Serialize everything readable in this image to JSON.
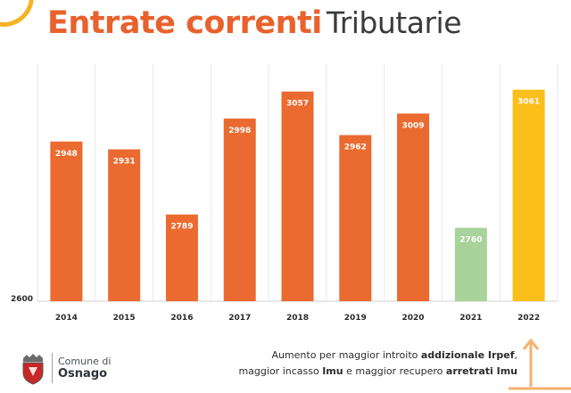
{
  "title": {
    "bold": "Entrate correnti",
    "light": "Tributarie"
  },
  "chart_data": {
    "type": "bar",
    "categories": [
      "2014",
      "2015",
      "2016",
      "2017",
      "2018",
      "2019",
      "2020",
      "2021",
      "2022"
    ],
    "values": [
      2948,
      2931,
      2789,
      2998,
      3057,
      2962,
      3009,
      2760,
      3061
    ],
    "data_labels": [
      "2948",
      "2931",
      "2789",
      "2998",
      "3057",
      "2962",
      "3009",
      "2760",
      "3061"
    ],
    "colors": [
      "#eb6a30",
      "#eb6a30",
      "#eb6a30",
      "#eb6a30",
      "#eb6a30",
      "#eb6a30",
      "#eb6a30",
      "#a8d39a",
      "#fbbf1c"
    ],
    "baseline_label": "2600",
    "ylim": [
      2600,
      3070
    ],
    "grid": true,
    "grid_color": "#e8e8e8",
    "xlabel": "",
    "ylabel": ""
  },
  "logo": {
    "line1": "Comune di",
    "line2": "Osnago"
  },
  "note": {
    "line1_prefix": "Aumento per maggior introito ",
    "line1_bold": "addizionale Irpef",
    "line1_suffix": ",",
    "line2_prefix": "maggior incasso ",
    "line2_bold1": "Imu",
    "line2_mid": " e maggior recupero ",
    "line2_bold2": "arretrati Imu"
  },
  "colors": {
    "accent": "#e9612c",
    "highlight": "#fbbf1c",
    "arc": "#f5b323"
  },
  "icons": {
    "crest": "crest-icon",
    "arrow": "arrow-icon"
  }
}
